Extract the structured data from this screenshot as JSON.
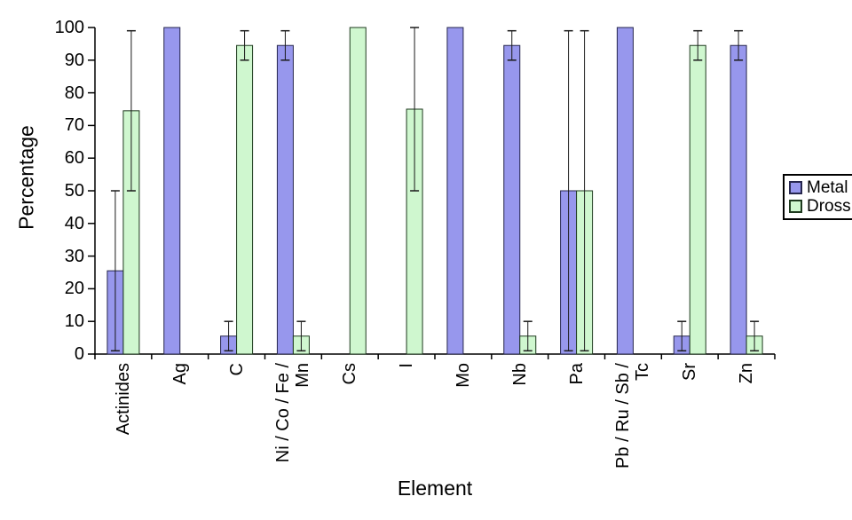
{
  "colors": {
    "background": "#FFFFFF",
    "axis": "#000000",
    "error_bar": "#1A1A1A",
    "metal_fill": "#9797ED",
    "metal_border": "#26264D",
    "dross_fill": "#CFF7CF",
    "dross_border": "#1E3A1E"
  },
  "axes": {
    "y_title": "Percentage",
    "x_title": "Element",
    "y_ticks": [
      100,
      90,
      80,
      70,
      60,
      50,
      40,
      30,
      20,
      10,
      0
    ]
  },
  "legend": {
    "position": "right",
    "items": [
      {
        "label": "Metal"
      },
      {
        "label": "Dross"
      }
    ]
  },
  "chart_data": {
    "type": "bar",
    "title": "",
    "xlabel": "Element",
    "ylabel": "Percentage",
    "ylim": [
      0,
      100
    ],
    "grid": false,
    "legend_position": "right",
    "categories": [
      "Actinides",
      "Ag",
      "C",
      "Ni / Co / Fe / Mn",
      "Cs",
      "I",
      "Mo",
      "Nb",
      "Pa",
      "Pb / Ru / Sb / Tc",
      "Sr",
      "Zn"
    ],
    "category_label_lines": [
      [
        "Actinides"
      ],
      [
        "Ag"
      ],
      [
        "C"
      ],
      [
        "Ni / Co / Fe /",
        "Mn"
      ],
      [
        "Cs"
      ],
      [
        "I"
      ],
      [
        "Mo"
      ],
      [
        "Nb"
      ],
      [
        "Pa"
      ],
      [
        "Pb / Ru / Sb /",
        "Tc"
      ],
      [
        "Sr"
      ],
      [
        "Zn"
      ]
    ],
    "series": [
      {
        "name": "Metal",
        "color": "#9797ED",
        "border_color": "#26264D",
        "values": [
          25.5,
          100,
          5.5,
          94.5,
          null,
          null,
          100,
          94.5,
          50,
          100,
          5.5,
          94.5
        ],
        "error_bars": [
          [
            1,
            50
          ],
          null,
          [
            1,
            10
          ],
          [
            90,
            99
          ],
          null,
          null,
          null,
          [
            90,
            99
          ],
          [
            1,
            99
          ],
          null,
          [
            1,
            10
          ],
          [
            90,
            99
          ]
        ]
      },
      {
        "name": "Dross",
        "color": "#CFF7CF",
        "border_color": "#1E3A1E",
        "values": [
          74.5,
          null,
          94.5,
          5.5,
          100,
          75,
          null,
          5.5,
          50,
          null,
          94.5,
          5.5
        ],
        "error_bars": [
          [
            50,
            99
          ],
          null,
          [
            90,
            99
          ],
          [
            1,
            10
          ],
          null,
          [
            50,
            100
          ],
          null,
          [
            1,
            10
          ],
          [
            1,
            99
          ],
          null,
          [
            90,
            99
          ],
          [
            1,
            10
          ]
        ]
      }
    ]
  }
}
